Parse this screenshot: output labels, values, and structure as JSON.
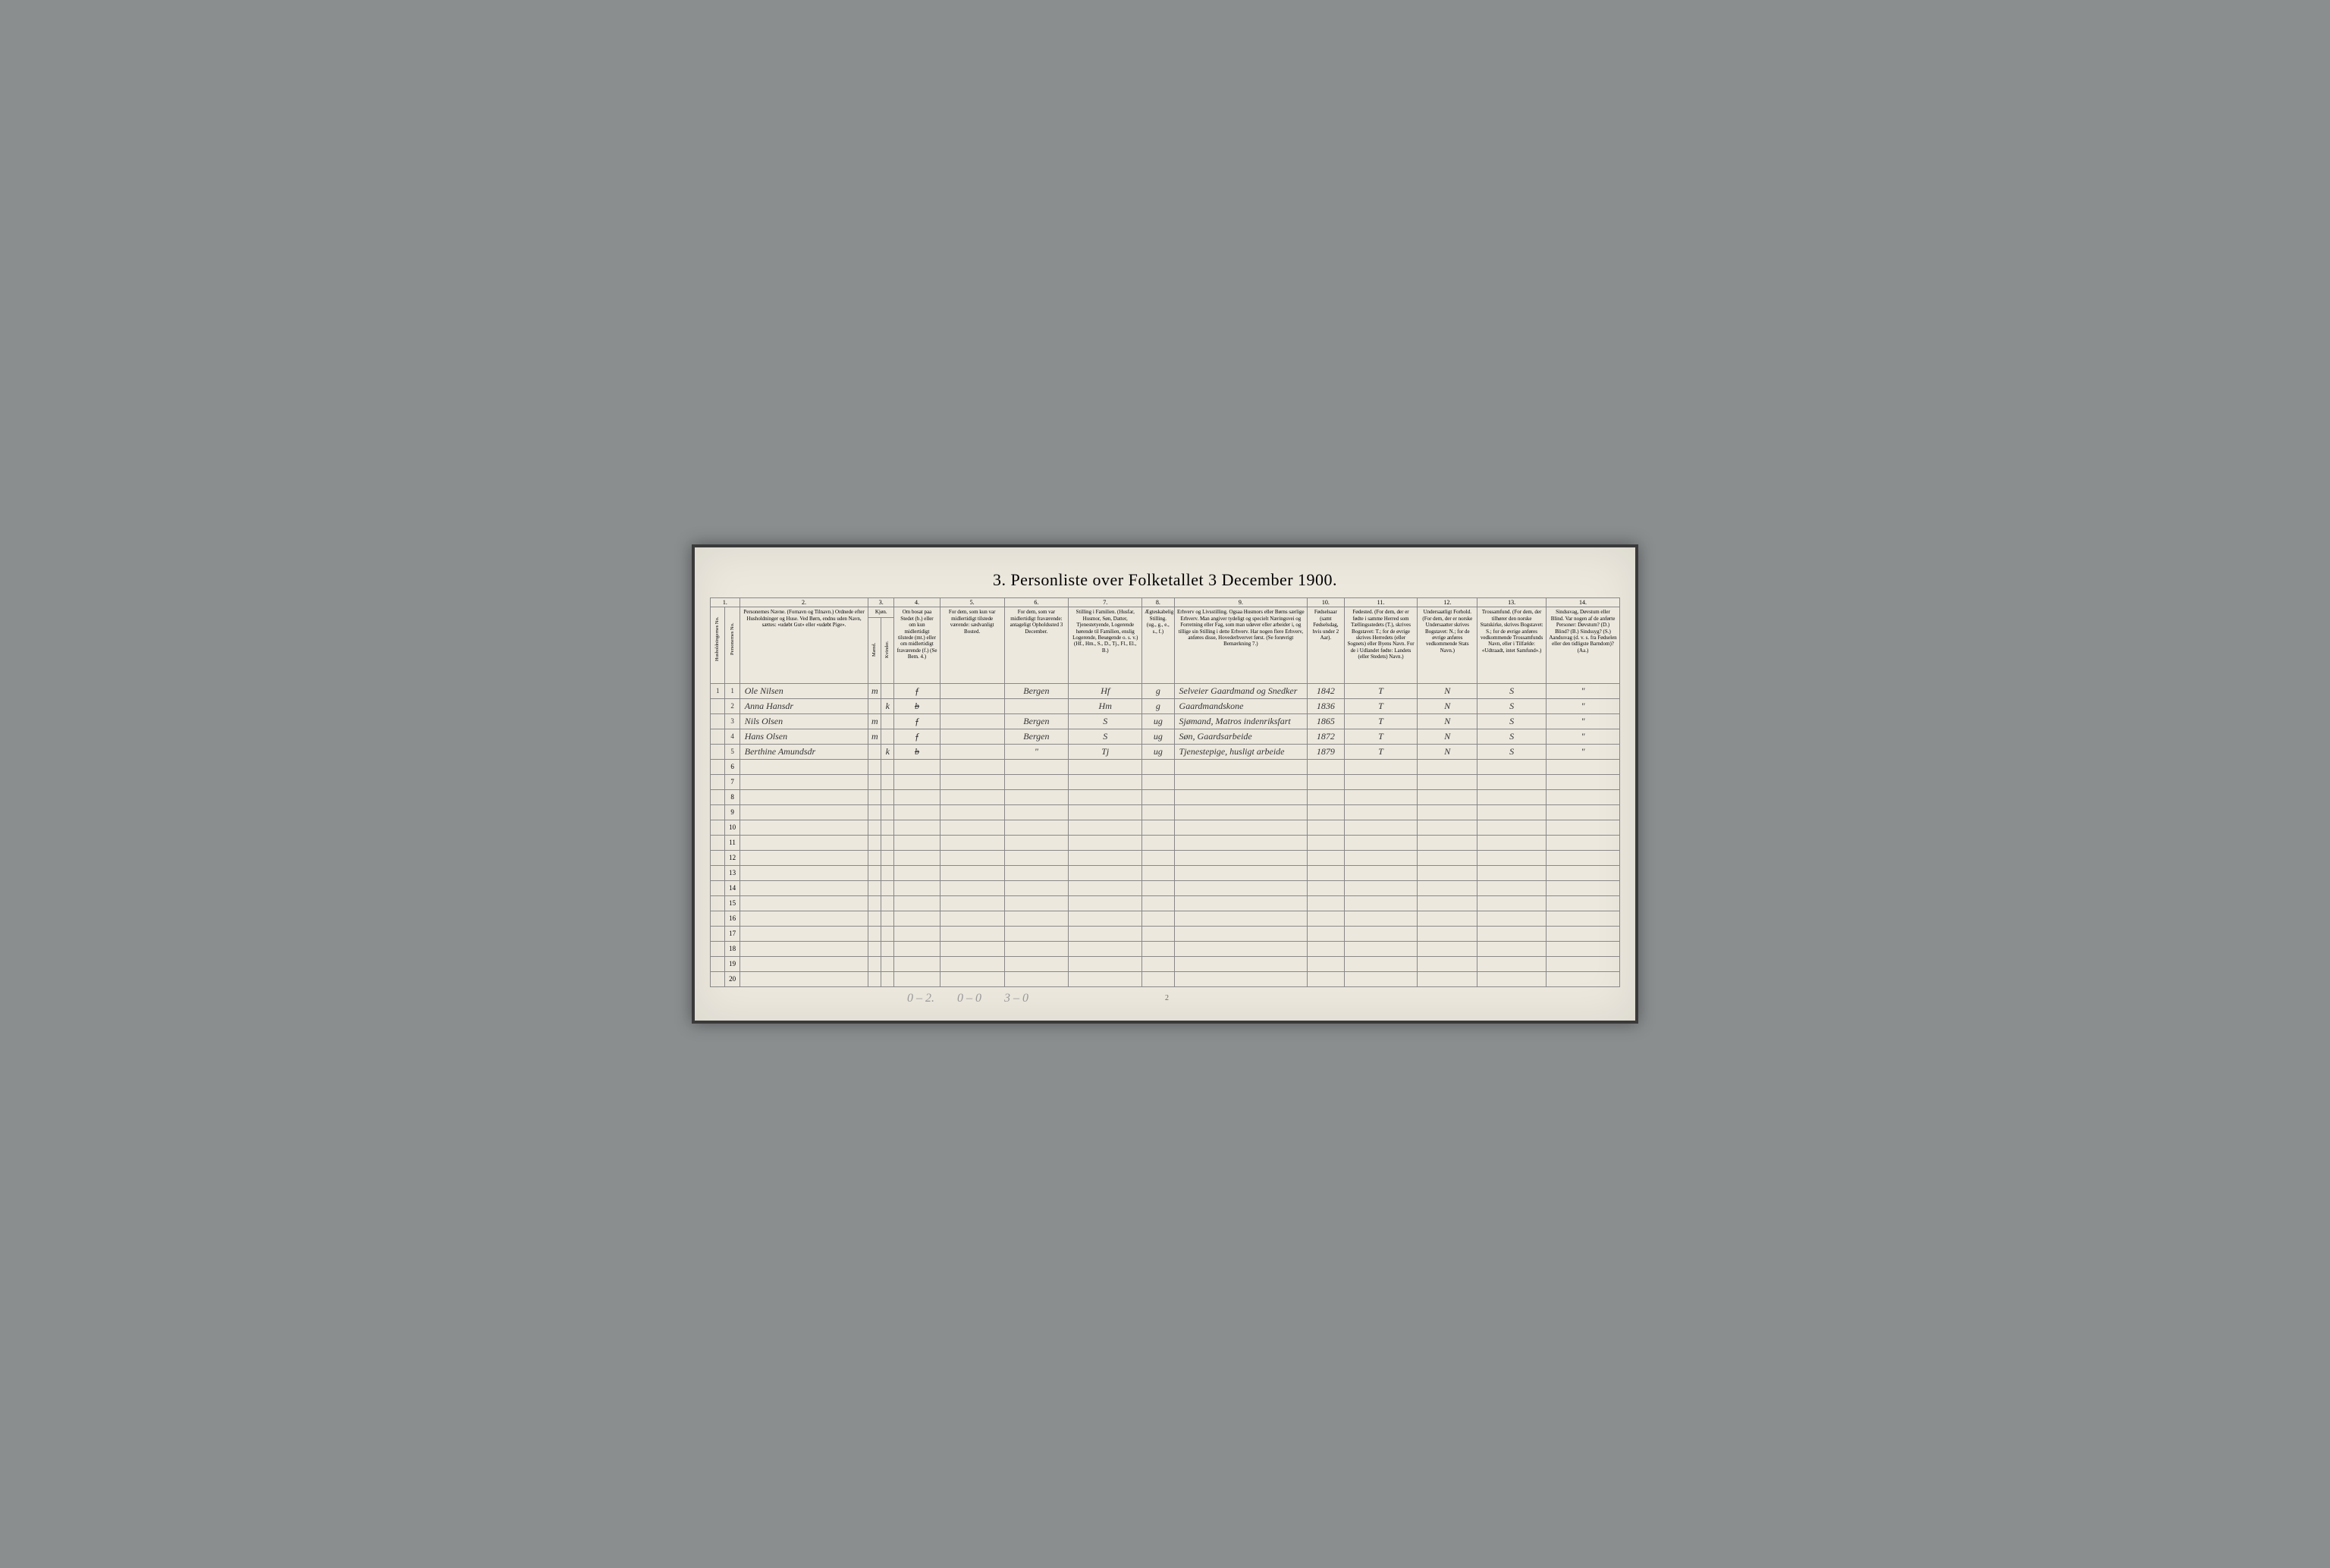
{
  "title": "3.  Personliste over Folketallet 3 December 1900.",
  "column_numbers": [
    "1.",
    "2.",
    "3.",
    "4.",
    "5.",
    "6.",
    "7.",
    "8.",
    "9.",
    "10.",
    "11.",
    "12.",
    "13.",
    "14."
  ],
  "columns": {
    "c1a": "Husholdningernes No.",
    "c1b": "Personernes No.",
    "c2": "Personernes Navne.\n(Fornavn og Tilnavn.)\nOrdnede efter Husholdninger og Huse.\nVed Børn, endnu uden Navn, sættes: «udøbt Gut» eller «udøbt Pige».",
    "c3": "Kjøn.",
    "c3a": "Mænd.",
    "c3b": "Kvinder.",
    "c3mk": "m.  k.",
    "c4": "Om bosat paa Stedet (b.) eller om kun midlertidigt tilstede (mt.) eller om midlertidigt fraværende (f.)\n(Se Bem. 4.)",
    "c5": "For dem, som kun var midlertidigt tilstede værende:\nsædvanligt Bosted.",
    "c6": "For dem, som var midlertidigt fraværende:\nantageligt Opholdssted 3 December.",
    "c7": "Stilling i Familien.\n(Husfar, Husmor, Søn, Datter, Tjenestetyende, Logerende hørende til Familien, enslig Logerende, Besøgende o. s. v.)\n(Hf., Hm., S., D., Tj., Fl., El., B.)",
    "c8": "Ægteskabelig Stilling.\n(ug., g., e., s., f.)",
    "c9": "Erhverv og Livsstilling.\nOgsaa Husmors eller Børns særlige Erhverv.\nMan angiver tydeligt og specielt Næringsvei og Forretning eller Fag, som man udøver eller arbeider i, og tillige sin Stilling i dette Erhverv.\nHar nogen flere Erhverv, anføres disse, Hovederhvervet først.\n(Se forøvrigt Bemærkning 7.)",
    "c10": "Fødselsaar\n(samt Fødselsdag, hvis under 2 Aar).",
    "c11": "Fødested.\n(For dem, der er fødte i samme Herred som Tællingsstedets (T.), skrives Bogstavet: T.; for de øvrige skrives Herredets (eller Sognets) eller Byens Navn.\nFor de i Udlandet fødte: Landets (eller Stedets) Navn.)",
    "c12": "Undersaatligt Forhold.\n(For dem, der er norske Undersaatter skrives Bogstavet: N.; for de øvrige anføres vedkommende Stats Navn.)",
    "c13": "Trossamfund.\n(For dem, der tilhører den norske Statskirke, skrives Bogstavet: S.; for de øvrige anføres vedkommende Trossamfunds Navn, eller i Tilfælde: «Udtraadt, intet Samfund».)",
    "c14": "Sindssvag, Døvstum eller Blind.\nVar nogen af de anførte Personer:\nDøvstum?   (D.)\nBlind?   (B.)\nSindssyg?   (S.)\nAandssvag (d. v. s. fra Fødselen eller den tidligste Barndom)? (Aa.)"
  },
  "rows": [
    {
      "hnum": "1",
      "pnum": "1",
      "name": "Ole Nilsen",
      "m": "m",
      "k": "",
      "bosat": "f",
      "c5": "",
      "c6": "Bergen",
      "fam": "Hf",
      "egte": "g",
      "erhverv": "Selveier Gaardmand og Snedker",
      "aar": "1842",
      "fodested": "T",
      "forhold": "N",
      "tros": "S",
      "sind": "\""
    },
    {
      "hnum": "",
      "pnum": "2",
      "name": "Anna Hansdr",
      "m": "",
      "k": "k",
      "bosat": "b",
      "c5": "",
      "c6": "",
      "fam": "Hm",
      "egte": "g",
      "erhverv": "Gaardmandskone",
      "aar": "1836",
      "fodested": "T",
      "forhold": "N",
      "tros": "S",
      "sind": "\""
    },
    {
      "hnum": "",
      "pnum": "3",
      "name": "Nils Olsen",
      "m": "m",
      "k": "",
      "bosat": "f",
      "c5": "",
      "c6": "Bergen",
      "fam": "S",
      "egte": "ug",
      "erhverv": "Sjømand, Matros indenriksfart",
      "aar": "1865",
      "fodested": "T",
      "forhold": "N",
      "tros": "S",
      "sind": "\""
    },
    {
      "hnum": "",
      "pnum": "4",
      "name": "Hans Olsen",
      "m": "m",
      "k": "",
      "bosat": "f",
      "c5": "",
      "c6": "Bergen",
      "fam": "S",
      "egte": "ug",
      "erhverv": "Søn, Gaardsarbeide",
      "aar": "1872",
      "fodested": "T",
      "forhold": "N",
      "tros": "S",
      "sind": "\""
    },
    {
      "hnum": "",
      "pnum": "5",
      "name": "Berthine Amundsdr",
      "m": "",
      "k": "k",
      "bosat": "b",
      "c5": "",
      "c6": "\"",
      "fam": "Tj",
      "egte": "ug",
      "erhverv": "Tjenestepige, husligt arbeide",
      "aar": "1879",
      "fodested": "T",
      "forhold": "N",
      "tros": "S",
      "sind": "\""
    }
  ],
  "empty_row_numbers": [
    "6",
    "7",
    "8",
    "9",
    "10",
    "11",
    "12",
    "13",
    "14",
    "15",
    "16",
    "17",
    "18",
    "19",
    "20"
  ],
  "footer_notes": [
    "0 – 2.",
    "0 – 0",
    "3 – 0"
  ],
  "page_number": "2",
  "col_widths": {
    "c1a": 16,
    "c1b": 16,
    "c2": 140,
    "c3a": 14,
    "c3b": 14,
    "c4": 50,
    "c5": 70,
    "c6": 70,
    "c7": 80,
    "c8": 35,
    "c9": 145,
    "c10": 40,
    "c11": 80,
    "c12": 65,
    "c13": 75,
    "c14": 80
  },
  "colors": {
    "page_bg": "#ece8de",
    "frame_bg": "#3a3a3a",
    "body_bg": "#8a8e8f",
    "border": "#888",
    "handwriting": "#333"
  }
}
